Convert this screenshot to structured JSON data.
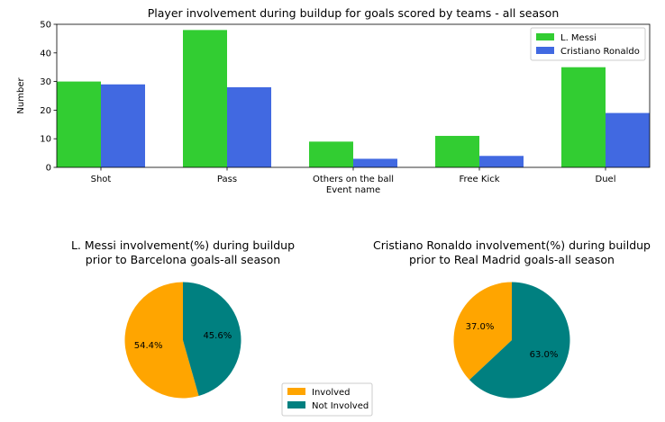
{
  "chart_data": [
    {
      "type": "bar",
      "title": "Player involvement during buildup for goals scored by teams - all season",
      "xlabel": "Event name",
      "ylabel": "Number",
      "categories": [
        "Shot",
        "Pass",
        "Others on the ball",
        "Free Kick",
        "Duel"
      ],
      "series": [
        {
          "name": "L. Messi",
          "color": "#32cd32",
          "values": [
            30,
            48,
            9,
            11,
            35
          ]
        },
        {
          "name": "Cristiano Ronaldo",
          "color": "#4169e1",
          "values": [
            29,
            28,
            3,
            4,
            19
          ]
        }
      ],
      "ylim": [
        0,
        50
      ],
      "yticks": [
        "0",
        "10",
        "20",
        "30",
        "40",
        "50"
      ],
      "legend": "top-right",
      "grid": false
    },
    {
      "type": "pie",
      "title": "L. Messi involvement(%) during buildup\nprior to Barcelona goals-all season",
      "slices": [
        {
          "label": "Involved",
          "value": 54.4,
          "text": "54.4%",
          "color": "#ffa500"
        },
        {
          "label": "Not Involved",
          "value": 45.6,
          "text": "45.6%",
          "color": "#008080"
        }
      ]
    },
    {
      "type": "pie",
      "title": "Cristiano Ronaldo involvement(%) during buildup\nprior to Real Madrid goals-all season",
      "slices": [
        {
          "label": "Involved",
          "value": 37.0,
          "text": "37.0%",
          "color": "#ffa500"
        },
        {
          "label": "Not Involved",
          "value": 63.0,
          "text": "63.0%",
          "color": "#008080"
        }
      ]
    }
  ],
  "pie_legend": [
    {
      "label": "Involved",
      "color": "#ffa500"
    },
    {
      "label": "Not Involved",
      "color": "#008080"
    }
  ]
}
